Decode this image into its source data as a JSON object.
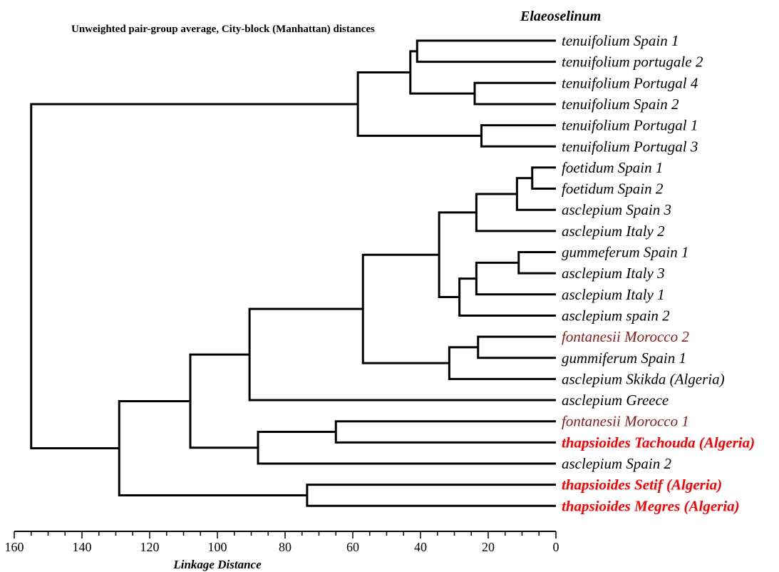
{
  "title": "Unweighted pair-group average, City-block (Manhattan) distances",
  "genus": "Elaeoselinum",
  "chart_data": {
    "type": "dendrogram",
    "xlabel": "Linkage Distance",
    "xlim": [
      160,
      0
    ],
    "xticks": [
      "160",
      "140",
      "120",
      "100",
      "80",
      "60",
      "40",
      "20",
      "0"
    ],
    "colors": {
      "default": "#000000",
      "dark_red": "#8b1a1a",
      "red": "#ff0000"
    },
    "leaves": [
      {
        "label": "tenuifolium Spain 1",
        "color": "default",
        "bold": false
      },
      {
        "label": "tenuifolium portugale 2",
        "color": "default",
        "bold": false
      },
      {
        "label": "tenuifolium Portugal 4",
        "color": "default",
        "bold": false
      },
      {
        "label": "tenuifolium Spain 2",
        "color": "default",
        "bold": false
      },
      {
        "label": "tenuifolium Portugal 1",
        "color": "default",
        "bold": false
      },
      {
        "label": "tenuifolium Portugal 3",
        "color": "default",
        "bold": false
      },
      {
        "label": "foetidum Spain 1",
        "color": "default",
        "bold": false
      },
      {
        "label": "foetidum Spain 2",
        "color": "default",
        "bold": false
      },
      {
        "label": "asclepium Spain 3",
        "color": "default",
        "bold": false
      },
      {
        "label": "asclepium Italy 2",
        "color": "default",
        "bold": false
      },
      {
        "label": "gummeferum Spain 1",
        "color": "default",
        "bold": false
      },
      {
        "label": "asclepium Italy 3",
        "color": "default",
        "bold": false
      },
      {
        "label": "asclepium Italy 1",
        "color": "default",
        "bold": false
      },
      {
        "label": "asclepium spain 2",
        "color": "default",
        "bold": false
      },
      {
        "label": "fontanesii Morocco 2",
        "color": "dark_red",
        "bold": false
      },
      {
        "label": "gummiferum Spain 1",
        "color": "default",
        "bold": false
      },
      {
        "label": "asclepium Skikda (Algeria)",
        "color": "default",
        "bold": false
      },
      {
        "label": "asclepium Greece",
        "color": "default",
        "bold": false
      },
      {
        "label": "fontanesii Morocco 1",
        "color": "dark_red",
        "bold": false
      },
      {
        "label": "thapsioides Tachouda (Algeria)",
        "color": "red",
        "bold": true
      },
      {
        "label": "asclepium Spain 2",
        "color": "default",
        "bold": false
      },
      {
        "label": "thapsioides Setif (Algeria)",
        "color": "red",
        "bold": true
      },
      {
        "label": "thapsioides Megres (Algeria)",
        "color": "red",
        "bold": true
      }
    ],
    "merges": [
      {
        "a": "L0",
        "b": "L1",
        "height": 41
      },
      {
        "a": "L2",
        "b": "L3",
        "height": 24
      },
      {
        "a": "N0",
        "b": "N1",
        "height": 43
      },
      {
        "a": "L4",
        "b": "L5",
        "height": 22
      },
      {
        "a": "N2",
        "b": "N3",
        "height": 58.5
      },
      {
        "a": "L6",
        "b": "L7",
        "height": 7
      },
      {
        "a": "N5",
        "b": "L8",
        "height": 11.5
      },
      {
        "a": "N6",
        "b": "L9",
        "height": 23.5
      },
      {
        "a": "L10",
        "b": "L11",
        "height": 11
      },
      {
        "a": "N8",
        "b": "L12",
        "height": 23.5
      },
      {
        "a": "N9",
        "b": "L13",
        "height": 28.5
      },
      {
        "a": "N7",
        "b": "N10",
        "height": 34.5
      },
      {
        "a": "L14",
        "b": "L15",
        "height": 23
      },
      {
        "a": "N12",
        "b": "L16",
        "height": 31.5
      },
      {
        "a": "N11",
        "b": "N13",
        "height": 57
      },
      {
        "a": "N14",
        "b": "L17",
        "height": 90.5
      },
      {
        "a": "L18",
        "b": "L19",
        "height": 65
      },
      {
        "a": "N16",
        "b": "L20",
        "height": 88
      },
      {
        "a": "N15",
        "b": "N17",
        "height": 108
      },
      {
        "a": "L21",
        "b": "L22",
        "height": 73.5
      },
      {
        "a": "N18",
        "b": "N19",
        "height": 129
      },
      {
        "a": "N4",
        "b": "N20",
        "height": 155
      }
    ]
  }
}
